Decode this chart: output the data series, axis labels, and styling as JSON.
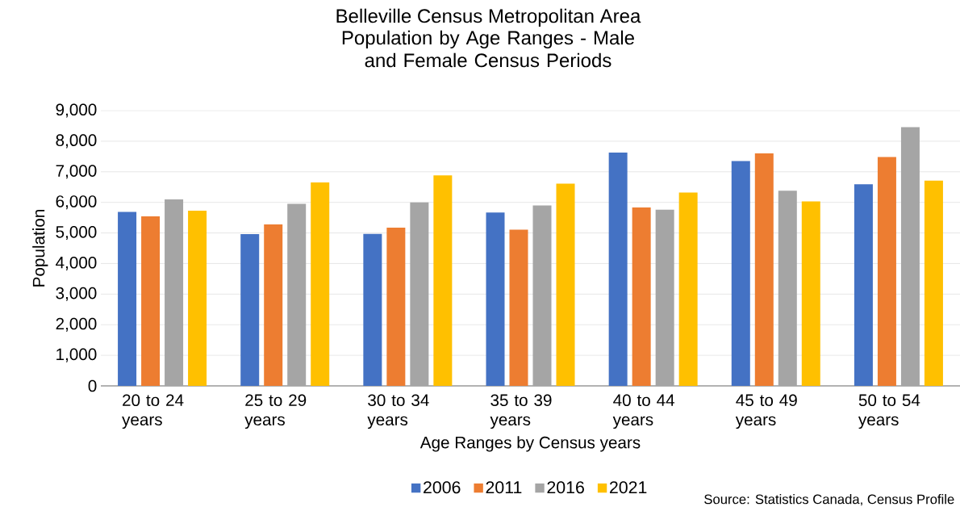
{
  "chart_data": {
    "type": "bar",
    "title": "Belleville Census Metropolitan Area",
    "subtitle": "Population by Age Ranges - Male and Female Census Periods",
    "xlabel": "Age Ranges by Census years",
    "ylabel": "Population",
    "categories": [
      "20 to 24 years",
      "25 to 29 years",
      "30 to 34 years",
      "35 to 39 years",
      "40 to 44 years",
      "45 to 49 years",
      "50 to 54 years"
    ],
    "series": [
      {
        "name": "2006",
        "color": "#4472c4",
        "values": [
          5690,
          4960,
          4970,
          5670,
          7630,
          7350,
          6590
        ]
      },
      {
        "name": "2011",
        "color": "#ed7d31",
        "values": [
          5540,
          5280,
          5170,
          5110,
          5830,
          7600,
          7480
        ]
      },
      {
        "name": "2016",
        "color": "#a5a5a5",
        "values": [
          6100,
          5950,
          6000,
          5900,
          5760,
          6380,
          8460
        ]
      },
      {
        "name": "2021",
        "color": "#ffc000",
        "values": [
          5730,
          6650,
          6880,
          6610,
          6320,
          6030,
          6710
        ]
      }
    ],
    "ylim": [
      0,
      9000
    ],
    "yticks": [
      0,
      {
        "value": 1000,
        "label": "1,000"
      },
      {
        "value": 2000,
        "label": "2,000"
      },
      {
        "value": 3000,
        "label": "3,000"
      },
      {
        "value": 4000,
        "label": "4,000"
      },
      {
        "value": 5000,
        "label": "5,000"
      },
      {
        "value": 6000,
        "label": "6,000"
      },
      {
        "value": 7000,
        "label": "7,000"
      },
      {
        "value": 8000,
        "label": "8,000"
      },
      {
        "value": 9000,
        "label": "9,000"
      }
    ],
    "grid": "y",
    "legend": "bottom",
    "annotations": [
      "Source: Statistics Canada, Census Profile"
    ]
  }
}
